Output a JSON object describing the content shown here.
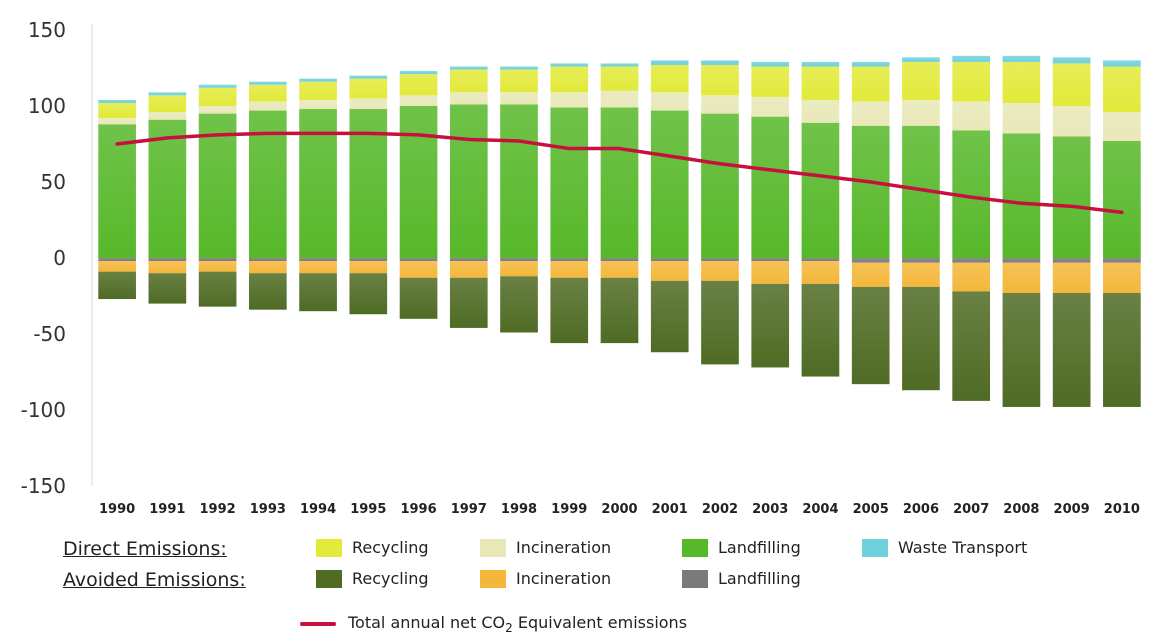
{
  "chart_data": {
    "type": "bar",
    "stacked": true,
    "categories": [
      "1990",
      "1991",
      "1992",
      "1993",
      "1994",
      "1995",
      "1996",
      "1997",
      "1998",
      "1999",
      "2000",
      "2001",
      "2002",
      "2003",
      "2004",
      "2005",
      "2006",
      "2007",
      "2008",
      "2009",
      "2010"
    ],
    "ylim": [
      -150,
      150
    ],
    "yticks": [
      150,
      100,
      50,
      0,
      -50,
      -100,
      -150
    ],
    "ytick_labels": [
      "150",
      "100",
      "50",
      "0",
      "-50",
      "-100",
      "-150"
    ],
    "grid": false,
    "series": [
      {
        "key": "direct_landfilling",
        "name": "Landfilling",
        "group": "direct",
        "color": "#57b82a",
        "values": [
          88,
          91,
          95,
          97,
          98,
          98,
          100,
          101,
          101,
          99,
          99,
          97,
          95,
          93,
          89,
          87,
          87,
          84,
          82,
          80,
          77
        ]
      },
      {
        "key": "direct_incineration",
        "name": "Incineration",
        "group": "direct",
        "color": "#e8e8b8",
        "values": [
          4,
          5,
          5,
          6,
          6,
          7,
          7,
          8,
          8,
          10,
          11,
          12,
          12,
          13,
          15,
          16,
          17,
          19,
          20,
          20,
          19
        ]
      },
      {
        "key": "direct_recycling",
        "name": "Recycling",
        "group": "direct",
        "color": "#e2ea3a",
        "values": [
          10,
          11,
          12,
          11,
          12,
          13,
          14,
          15,
          15,
          17,
          16,
          18,
          20,
          20,
          22,
          23,
          25,
          26,
          27,
          28,
          30
        ]
      },
      {
        "key": "direct_transport",
        "name": "Waste Transport",
        "group": "direct",
        "color": "#6fd1dc",
        "values": [
          2,
          2,
          2,
          2,
          2,
          2,
          2,
          2,
          2,
          2,
          2,
          3,
          3,
          3,
          3,
          3,
          3,
          4,
          4,
          4,
          4
        ]
      },
      {
        "key": "avoided_landfilling",
        "name": "Landfilling",
        "group": "avoided",
        "color": "#7a7a7a",
        "values": [
          -2,
          -2,
          -2,
          -2,
          -2,
          -2,
          -2,
          -2,
          -2,
          -2,
          -2,
          -2,
          -2,
          -2,
          -2,
          -3,
          -3,
          -3,
          -3,
          -3,
          -3
        ]
      },
      {
        "key": "avoided_incineration",
        "name": "Incineration",
        "group": "avoided",
        "color": "#f4b73a",
        "values": [
          -7,
          -8,
          -7,
          -8,
          -8,
          -8,
          -11,
          -11,
          -10,
          -11,
          -11,
          -13,
          -13,
          -15,
          -15,
          -16,
          -16,
          -19,
          -20,
          -20,
          -20
        ]
      },
      {
        "key": "avoided_recycling",
        "name": "Recycling",
        "group": "avoided",
        "color": "#4f6b24",
        "values": [
          -18,
          -20,
          -23,
          -24,
          -25,
          -27,
          -27,
          -33,
          -37,
          -43,
          -43,
          -47,
          -55,
          -55,
          -61,
          -64,
          -68,
          -72,
          -75,
          -75,
          -75
        ]
      }
    ],
    "net_line": {
      "name": "Total annual net CO2 Equivalent emissions",
      "color": "#c8103e",
      "values": [
        75,
        79,
        81,
        82,
        82,
        82,
        81,
        78,
        77,
        72,
        72,
        67,
        62,
        58,
        54,
        50,
        45,
        40,
        36,
        34,
        30
      ]
    }
  },
  "legend": {
    "direct_heading": "Direct Emissions:",
    "avoided_heading": "Avoided Emissions:",
    "direct": {
      "recycling": "Recycling",
      "incineration": "Incineration",
      "landfilling": "Landfilling",
      "transport": "Waste Transport"
    },
    "avoided": {
      "recycling": "Recycling",
      "incineration": "Incineration",
      "landfilling": "Landfilling"
    },
    "line_prefix": "Total annual net CO",
    "line_sub": "2",
    "line_suffix": " Equivalent emissions"
  }
}
